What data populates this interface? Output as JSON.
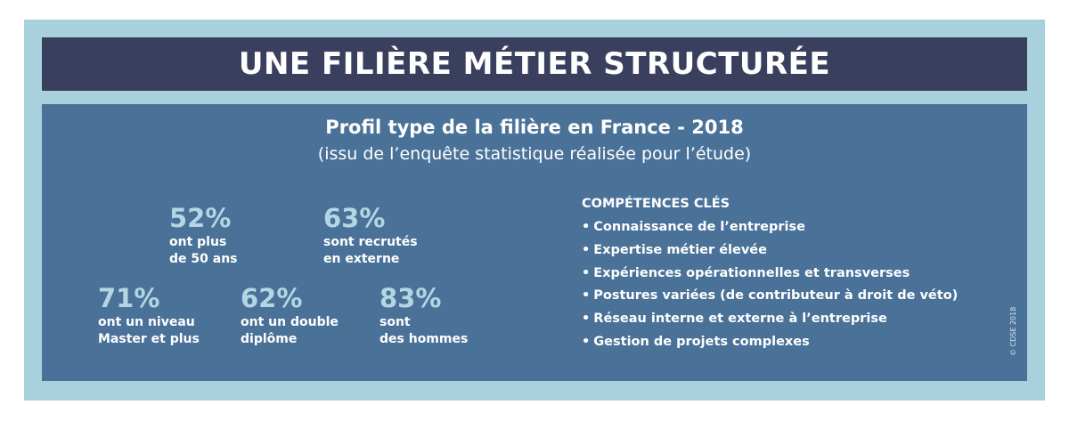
{
  "title": "UNE FILIÈRE MÉTIER STRUCTURÉE",
  "subtitle": "Profil type de la filière en France - 2018",
  "subtitle_note": "(issu de l’enquête statistique réalisée pour l’étude)",
  "stats": [
    {
      "percent": "52%",
      "label": "ont plus\nde 50 ans"
    },
    {
      "percent": "63%",
      "label": "sont recrutés\nen externe"
    },
    {
      "percent": "71%",
      "label": "ont un niveau\nMaster et plus"
    },
    {
      "percent": "62%",
      "label": "ont un double\ndiplôme"
    },
    {
      "percent": "83%",
      "label": "sont\ndes hommes"
    }
  ],
  "skills": {
    "heading": "COMPÉTENCES CLÉS",
    "items": [
      "Connaissance de l’entreprise",
      "Expertise métier élevée",
      "Expériences opérationnelles et transverses",
      "Postures variées (de contributeur à droit de véto)",
      "Réseau interne et externe à l’entreprise",
      "Gestion de projets complexes"
    ]
  },
  "copyright": "© CDSE 2018",
  "colors": {
    "frame": "#a9d0dd",
    "title_bar": "#3a3f5e",
    "panel": "#4a7298",
    "percent": "#b3d6e3"
  }
}
